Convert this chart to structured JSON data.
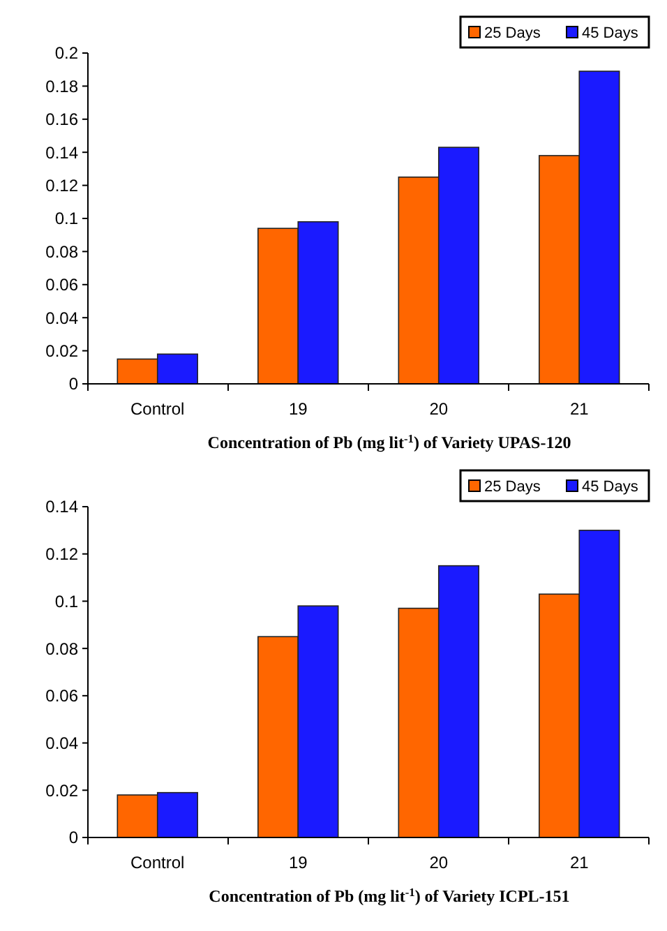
{
  "chart_data": [
    {
      "type": "bar",
      "xlabel": "Concentration of Pb (mg lit$^{-1}$) of Variety UPAS-120",
      "categories": [
        "Control",
        "19",
        "20",
        "21"
      ],
      "series": [
        {
          "name": "25 Days",
          "color": "#ff6600",
          "values": [
            0.015,
            0.094,
            0.125,
            0.138
          ]
        },
        {
          "name": "45 Days",
          "color": "#1a1aff",
          "values": [
            0.018,
            0.098,
            0.143,
            0.189
          ]
        }
      ],
      "ylim": [
        0,
        0.2
      ],
      "yticks": [
        0,
        0.02,
        0.04,
        0.06,
        0.08,
        0.1,
        0.12,
        0.14,
        0.16,
        0.18,
        0.2
      ],
      "legend": "top right"
    },
    {
      "type": "bar",
      "xlabel": "Concentration of Pb (mg lit$^{-1}$) of Variety ICPL-151",
      "categories": [
        "Control",
        "19",
        "20",
        "21"
      ],
      "series": [
        {
          "name": "25 Days",
          "color": "#ff6600",
          "values": [
            0.018,
            0.085,
            0.097,
            0.103
          ]
        },
        {
          "name": "45 Days",
          "color": "#1a1aff",
          "values": [
            0.019,
            0.098,
            0.115,
            0.13
          ]
        }
      ],
      "ylim": [
        0,
        0.14
      ],
      "yticks": [
        0,
        0.02,
        0.04,
        0.06,
        0.08,
        0.1,
        0.12,
        0.14
      ],
      "legend": "top right"
    }
  ]
}
